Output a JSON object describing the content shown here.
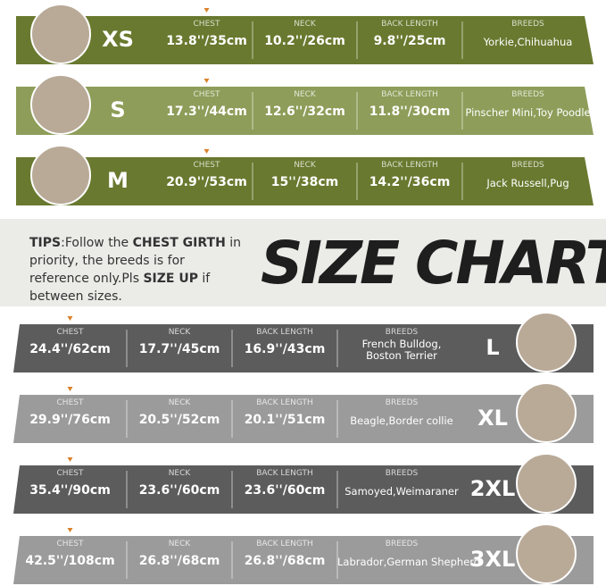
{
  "columns": [
    "CHEST",
    "NECK",
    "BACK LENGTH",
    "BREEDS"
  ],
  "upper_rows": [
    {
      "size": "XS",
      "chest": "13.8''/35cm",
      "neck": "10.2''/26cm",
      "back_length": "9.8''/25cm",
      "breeds": [
        "Yorkie,Chihuahua"
      ]
    },
    {
      "size": "S",
      "chest": "17.3''/44cm",
      "neck": "12.6''/32cm",
      "back_length": "11.8''/30cm",
      "breeds": [
        "Pinscher Mini,Toy Poodle"
      ]
    },
    {
      "size": "M",
      "chest": "20.9''/53cm",
      "neck": "15''/38cm",
      "back_length": "14.2''/36cm",
      "breeds": [
        "Jack Russell,Pug"
      ]
    }
  ],
  "tips": [
    {
      "text": "TIPS",
      "bold": true
    },
    {
      "text": ":Follow the ",
      "bold": false
    },
    {
      "text": "CHEST GIRTH",
      "bold": true
    },
    {
      "text": " in priority, the breeds is for reference only.Pls ",
      "bold": false
    },
    {
      "text": "SIZE UP",
      "bold": true
    },
    {
      "text": " if between sizes.",
      "bold": false
    }
  ],
  "title": "SIZE CHART",
  "lower_rows": [
    {
      "size": "L",
      "chest": "24.4''/62cm",
      "neck": "17.7''/45cm",
      "back_length": "16.9''/43cm",
      "breeds": [
        "French Bulldog,",
        "Boston Terrier"
      ]
    },
    {
      "size": "XL",
      "chest": "29.9''/76cm",
      "neck": "20.5''/52cm",
      "back_length": "20.1''/51cm",
      "breeds": [
        "Beagle,Border collie"
      ]
    },
    {
      "size": "2XL",
      "chest": "35.4''/90cm",
      "neck": "23.6''/60cm",
      "back_length": "23.6''/60cm",
      "breeds": [
        "Samoyed,Weimaraner"
      ]
    },
    {
      "size": "3XL",
      "chest": "42.5''/108cm",
      "neck": "26.8''/68cm",
      "back_length": "26.8''/68cm",
      "breeds": [
        "Labrador,German Shepherd"
      ]
    }
  ]
}
